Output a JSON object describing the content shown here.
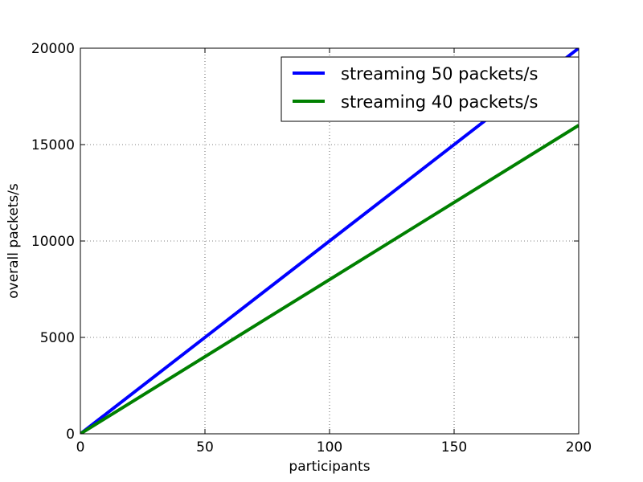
{
  "chart_data": {
    "type": "line",
    "title": "",
    "xlabel": "participants",
    "ylabel": "overall packets/s",
    "xlim": [
      0,
      200
    ],
    "ylim": [
      0,
      20000
    ],
    "x_ticks": [
      0,
      50,
      100,
      150,
      200
    ],
    "y_ticks": [
      0,
      5000,
      10000,
      15000,
      20000
    ],
    "grid": true,
    "grid_style": "dotted",
    "legend_position": "upper right",
    "series": [
      {
        "name": "streaming 50 packets/s",
        "color": "#0000ff",
        "x": [
          0,
          200
        ],
        "y": [
          0,
          20000
        ]
      },
      {
        "name": "streaming 40 packets/s",
        "color": "#008000",
        "x": [
          0,
          200
        ],
        "y": [
          0,
          16000
        ]
      }
    ]
  }
}
